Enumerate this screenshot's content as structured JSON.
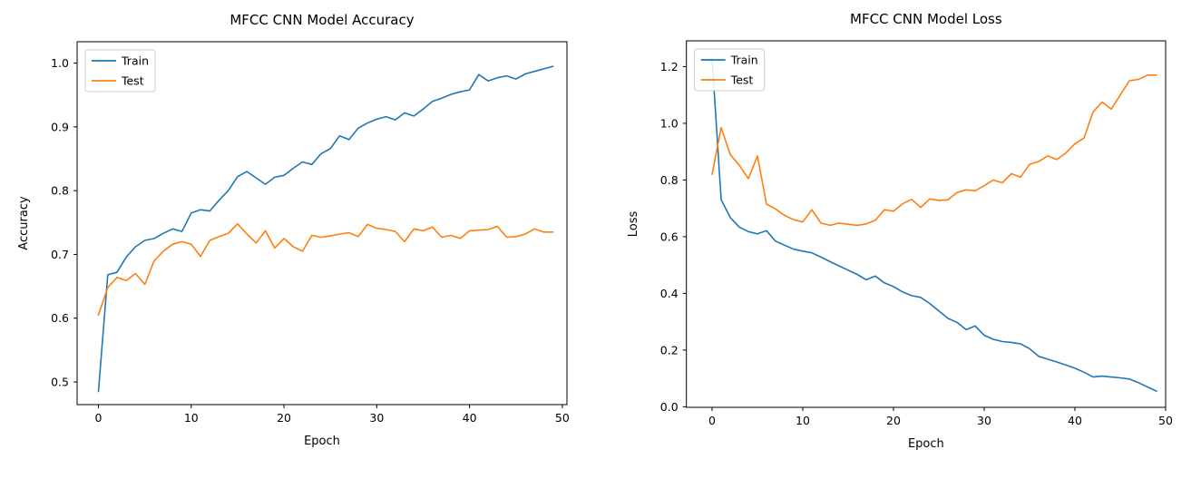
{
  "figure": {
    "background": "#ffffff"
  },
  "colors": {
    "train": "#1f77b4",
    "test": "#ff7f0e",
    "axis": "#000000",
    "legend_border": "#cccccc",
    "legend_fill": "rgba(255,255,255,0.85)"
  },
  "chart_data": [
    {
      "type": "line",
      "title": "MFCC CNN Model Accuracy",
      "xlabel": "Epoch",
      "ylabel": "Accuracy",
      "grid": false,
      "legend_position": "upper-left",
      "xlim": [
        -2.3,
        50.5
      ],
      "ylim": [
        0.4645,
        1.0335
      ],
      "xticks": {
        "values": [
          0,
          10,
          20,
          30,
          40,
          50
        ],
        "labels": [
          "0",
          "10",
          "20",
          "30",
          "40",
          "50"
        ]
      },
      "yticks": {
        "values": [
          0.5,
          0.6,
          0.7,
          0.8,
          0.9,
          1.0
        ],
        "labels": [
          "0.5",
          "0.6",
          "0.7",
          "0.8",
          "0.9",
          "1.0"
        ]
      },
      "epochs": 50,
      "series": [
        {
          "name": "Train",
          "color_key": "train",
          "values": [
            0.485,
            0.668,
            0.672,
            0.696,
            0.712,
            0.722,
            0.725,
            0.733,
            0.74,
            0.736,
            0.765,
            0.77,
            0.768,
            0.785,
            0.8,
            0.822,
            0.83,
            0.82,
            0.81,
            0.821,
            0.824,
            0.835,
            0.845,
            0.841,
            0.858,
            0.866,
            0.886,
            0.88,
            0.898,
            0.906,
            0.912,
            0.916,
            0.911,
            0.922,
            0.917,
            0.928,
            0.94,
            0.945,
            0.951,
            0.955,
            0.958,
            0.982,
            0.972,
            0.977,
            0.98,
            0.975,
            0.983,
            0.987,
            0.991,
            0.995
          ]
        },
        {
          "name": "Test",
          "color_key": "test",
          "values": [
            0.605,
            0.648,
            0.664,
            0.659,
            0.67,
            0.653,
            0.69,
            0.705,
            0.716,
            0.72,
            0.716,
            0.697,
            0.722,
            0.728,
            0.733,
            0.748,
            0.732,
            0.718,
            0.737,
            0.71,
            0.725,
            0.712,
            0.705,
            0.73,
            0.727,
            0.729,
            0.732,
            0.734,
            0.728,
            0.747,
            0.741,
            0.739,
            0.736,
            0.72,
            0.74,
            0.737,
            0.743,
            0.727,
            0.73,
            0.725,
            0.737,
            0.738,
            0.739,
            0.744,
            0.727,
            0.728,
            0.732,
            0.74,
            0.735,
            0.735
          ]
        }
      ]
    },
    {
      "type": "line",
      "title": "MFCC CNN Model Loss",
      "xlabel": "Epoch",
      "ylabel": "Loss",
      "grid": false,
      "legend_position": "upper-left",
      "xlim": [
        -2.83,
        50.0
      ],
      "ylim": [
        -0.002,
        1.291
      ],
      "xticks": {
        "values": [
          0,
          10,
          20,
          30,
          40,
          50
        ],
        "labels": [
          "0",
          "10",
          "20",
          "30",
          "40",
          "50"
        ]
      },
      "yticks": {
        "values": [
          0.0,
          0.2,
          0.4,
          0.6,
          0.8,
          1.0,
          1.2
        ],
        "labels": [
          "0.0",
          "0.2",
          "0.4",
          "0.6",
          "0.8",
          "1.0",
          "1.2"
        ]
      },
      "epochs": 50,
      "series": [
        {
          "name": "Train",
          "color_key": "train",
          "values": [
            1.23,
            0.731,
            0.668,
            0.634,
            0.618,
            0.61,
            0.621,
            0.584,
            0.57,
            0.556,
            0.549,
            0.543,
            0.528,
            0.512,
            0.497,
            0.482,
            0.467,
            0.448,
            0.461,
            0.437,
            0.424,
            0.405,
            0.392,
            0.386,
            0.364,
            0.338,
            0.312,
            0.298,
            0.272,
            0.285,
            0.252,
            0.238,
            0.23,
            0.227,
            0.222,
            0.205,
            0.178,
            0.168,
            0.158,
            0.147,
            0.136,
            0.122,
            0.105,
            0.108,
            0.105,
            0.102,
            0.098,
            0.085,
            0.07,
            0.055
          ]
        },
        {
          "name": "Test",
          "color_key": "test",
          "values": [
            0.82,
            0.985,
            0.89,
            0.852,
            0.805,
            0.885,
            0.715,
            0.698,
            0.675,
            0.66,
            0.652,
            0.695,
            0.648,
            0.64,
            0.648,
            0.644,
            0.64,
            0.645,
            0.658,
            0.695,
            0.69,
            0.716,
            0.732,
            0.703,
            0.733,
            0.728,
            0.73,
            0.756,
            0.765,
            0.762,
            0.78,
            0.8,
            0.79,
            0.822,
            0.81,
            0.855,
            0.865,
            0.885,
            0.872,
            0.895,
            0.928,
            0.948,
            1.04,
            1.075,
            1.05,
            1.1,
            1.15,
            1.155,
            1.17,
            1.17
          ]
        }
      ]
    }
  ]
}
